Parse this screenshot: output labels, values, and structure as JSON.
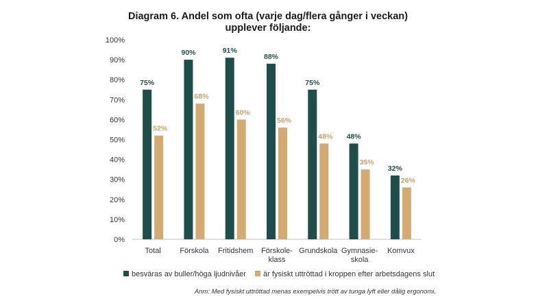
{
  "chart_data": {
    "type": "bar",
    "title_lines": [
      "Diagram 6. Andel som ofta (varje dag/flera gånger i veckan)",
      "upplever följande:"
    ],
    "categories": [
      [
        "Total"
      ],
      [
        "Förskola"
      ],
      [
        "Fritidshem"
      ],
      [
        "Förskole-",
        "klass"
      ],
      [
        "Grundskola"
      ],
      [
        "Gymnasie-",
        "skola"
      ],
      [
        "Komvux"
      ]
    ],
    "series": [
      {
        "name": "besväras av buller/höga ljudnivåer",
        "color": "#1f4e4a",
        "values": [
          75,
          90,
          91,
          88,
          75,
          48,
          32
        ],
        "labels": [
          "75%",
          "90%",
          "91%",
          "88%",
          "75%",
          "48%",
          "32%"
        ]
      },
      {
        "name": "är fysiskt uttröttad i kroppen efter arbetsdagens slut",
        "color": "#d4aa73",
        "values": [
          52,
          68,
          60,
          56,
          48,
          35,
          26
        ],
        "labels": [
          "52%",
          "68%",
          "60%",
          "56%",
          "48%",
          "35%",
          "26%"
        ]
      }
    ],
    "yticks": [
      "0%",
      "10%",
      "20%",
      "30%",
      "40%",
      "50%",
      "60%",
      "70%",
      "80%",
      "90%",
      "100%"
    ],
    "ylim": [
      0,
      100
    ],
    "grid": false,
    "legend_position": "bottom",
    "note": "Anm: Med fysiskt uttröttad menas exempelvis trött av tunga lyft eller dålig ergonomi."
  }
}
